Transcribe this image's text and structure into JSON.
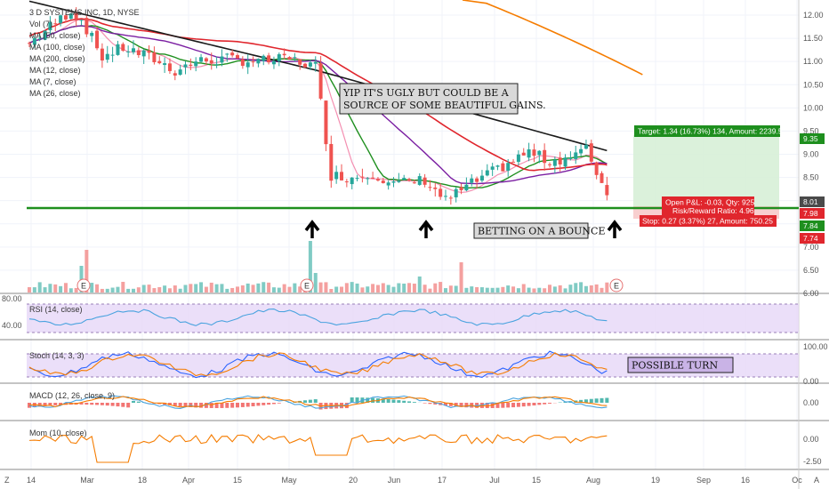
{
  "chart_data": {
    "type": "candlestick",
    "title": "3 D SYSTEMS INC, 1D, NYSE",
    "price_axis": {
      "ticks": [
        "12.00",
        "11.50",
        "11.00",
        "10.50",
        "10.00",
        "9.50",
        "9.00",
        "8.50",
        "8.00",
        "7.50",
        "7.00",
        "6.50",
        "6.00"
      ],
      "range": [
        6.0,
        12.2
      ]
    },
    "x_axis": {
      "labels": [
        "14",
        "Mar",
        "18",
        "Apr",
        "15",
        "May",
        "20",
        "Jun",
        "17",
        "Jul",
        "15",
        "Aug",
        "19",
        "Sep",
        "16",
        "Oc"
      ]
    },
    "indicators": [
      "Vol (7)",
      "MA (50, close)",
      "MA (100, close)",
      "MA (200, close)",
      "MA (12, close)",
      "MA (7, close)",
      "MA (26, close)"
    ],
    "support_level": 7.97,
    "trade": {
      "target": "Target: 1.34 (16.73%) 134, Amount: 2239.5",
      "pnl": "Open P&L: -0.03, Qty: 925",
      "ratio": "Risk/Reward Ratio: 4.96",
      "stop": "Stop: 0.27 (3.37%) 27, Amount: 750.25"
    },
    "price_tags": [
      {
        "text": "9.35",
        "color": "#1e8f1e"
      },
      {
        "text": "8.01",
        "color": "#4a4a4a"
      },
      {
        "text": "7.98",
        "color": "#e0262d"
      },
      {
        "text": "7.84",
        "color": "#1e8f1e"
      },
      {
        "text": "7.74",
        "color": "#e0262d"
      }
    ],
    "annotations": {
      "ugly": [
        "YIP IT'S UGLY BUT COULD BE A",
        "SOURCE OF SOME BEAUTIFUL GAINS."
      ],
      "bounce": "BETTING ON A BOUNCE",
      "turn": "POSSIBLE TURN"
    },
    "earnings_marker": "E",
    "panels": {
      "rsi": {
        "label": "RSI (14, close)",
        "ticks": [
          "80.00",
          "40.00"
        ]
      },
      "stoch": {
        "label": "Stoch (14, 3, 3)",
        "ticks": [
          "100.00",
          "0.00"
        ]
      },
      "macd": {
        "label": "MACD (12, 26, close, 9)",
        "ticks": [
          "0.00"
        ]
      },
      "mom": {
        "label": "Mom (10, close)",
        "ticks": [
          "0.00",
          "-2.50"
        ]
      }
    },
    "colors": {
      "up": "#26a69a",
      "down": "#ef5350",
      "ma50": "#e0262d",
      "ma100": "#1a1a1a",
      "ma200": "#f57c00",
      "ma12": "#1e8f1e",
      "ma7": "#f48fb1",
      "ma26": "#7b1fa2",
      "support": "#1e8f1e"
    },
    "axis_corner": "Z",
    "axis_toggle": "A"
  }
}
